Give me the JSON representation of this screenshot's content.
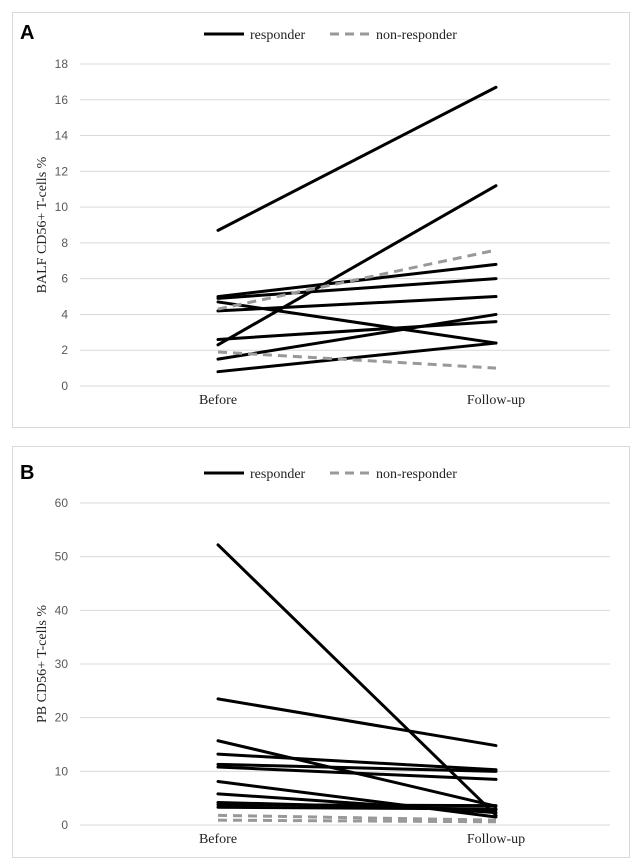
{
  "chart_data": [
    {
      "panel": "A",
      "type": "line",
      "categories": [
        "Before",
        "Follow-up"
      ],
      "ylabel": "BALF CD56+ T-cells %",
      "ylim": [
        0,
        18
      ],
      "yticks": [
        0,
        2,
        4,
        6,
        8,
        10,
        12,
        14,
        16,
        18
      ],
      "grid": true,
      "legend": {
        "position": "top-center",
        "entries": [
          {
            "label": "responder",
            "color": "#000000",
            "dash": "solid"
          },
          {
            "label": "non-responder",
            "color": "#999999",
            "dash": "dashed"
          }
        ]
      },
      "series": [
        {
          "group": "responder",
          "values": [
            8.7,
            16.7
          ]
        },
        {
          "group": "responder",
          "values": [
            2.3,
            11.2
          ]
        },
        {
          "group": "responder",
          "values": [
            5.0,
            6.8
          ]
        },
        {
          "group": "responder",
          "values": [
            4.9,
            6.0
          ]
        },
        {
          "group": "responder",
          "values": [
            4.2,
            5.0
          ]
        },
        {
          "group": "responder",
          "values": [
            4.7,
            2.4
          ]
        },
        {
          "group": "responder",
          "values": [
            2.6,
            3.6
          ]
        },
        {
          "group": "responder",
          "values": [
            1.5,
            4.0
          ]
        },
        {
          "group": "responder",
          "values": [
            0.8,
            2.4
          ]
        },
        {
          "group": "non-responder",
          "values": [
            4.3,
            7.6
          ]
        },
        {
          "group": "non-responder",
          "values": [
            1.9,
            1.0
          ]
        }
      ]
    },
    {
      "panel": "B",
      "type": "line",
      "categories": [
        "Before",
        "Follow-up"
      ],
      "ylabel": "PB CD56+ T-cells %",
      "ylim": [
        0,
        60
      ],
      "yticks": [
        0,
        10,
        20,
        30,
        40,
        50,
        60
      ],
      "grid": true,
      "legend": {
        "position": "top-center",
        "entries": [
          {
            "label": "responder",
            "color": "#000000",
            "dash": "solid"
          },
          {
            "label": "non-responder",
            "color": "#999999",
            "dash": "dashed"
          }
        ]
      },
      "series": [
        {
          "group": "responder",
          "values": [
            52.2,
            1.8
          ]
        },
        {
          "group": "responder",
          "values": [
            23.5,
            14.8
          ]
        },
        {
          "group": "responder",
          "values": [
            15.7,
            3.5
          ]
        },
        {
          "group": "responder",
          "values": [
            13.2,
            10.3
          ]
        },
        {
          "group": "responder",
          "values": [
            11.3,
            10.0
          ]
        },
        {
          "group": "responder",
          "values": [
            10.8,
            8.5
          ]
        },
        {
          "group": "responder",
          "values": [
            8.1,
            1.5
          ]
        },
        {
          "group": "responder",
          "values": [
            5.8,
            2.3
          ]
        },
        {
          "group": "responder",
          "values": [
            4.2,
            2.8
          ]
        },
        {
          "group": "responder",
          "values": [
            3.8,
            3.6
          ]
        },
        {
          "group": "responder",
          "values": [
            3.3,
            3.0
          ]
        },
        {
          "group": "non-responder",
          "values": [
            1.8,
            0.9
          ]
        },
        {
          "group": "non-responder",
          "values": [
            0.9,
            0.6
          ]
        }
      ]
    }
  ],
  "panel_labels": {
    "a": "A",
    "b": "B"
  }
}
